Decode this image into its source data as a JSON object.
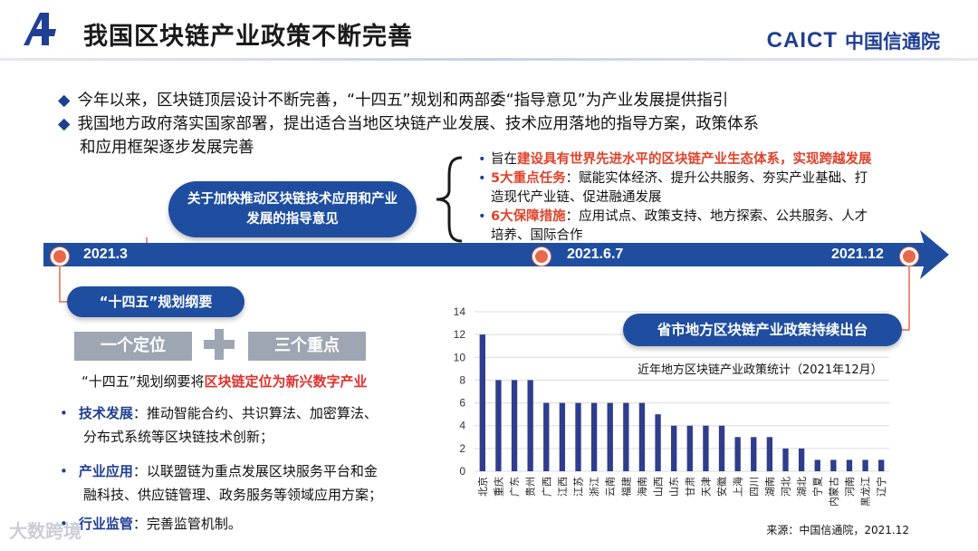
{
  "header": {
    "title": "我国区块链产业政策不断完善",
    "brand_en": "CAICT",
    "brand_cn": "中国信通院"
  },
  "bullets": [
    "今年以来，区块链顶层设计不断完善，“十四五”规划和两部委“指导意见”为产业发展提供指引",
    "我国地方政府落实国家部署，提出适合当地区块链产业发展、技术应用落地的指导方案，政策体系",
    "和应用框架逐步发展完善"
  ],
  "guideline": {
    "title_line1": "关于加快推动区块链技术应用和产业",
    "title_line2": "发展的指导意见",
    "goal1_prefix": "旨在",
    "goal1_red": "建设具有世界先进水平的区块链产业生态体系，实现跨越发展",
    "goal2_red": "5大重点任务",
    "goal2_text": "：赋能实体经济、提升公共服务、夯实产业基础、打",
    "goal2_cont": "造现代产业链、促进融通发展",
    "goal3_red": "6大保障措施",
    "goal3_text": "：应用试点、政策支持、地方探索、公共服务、人才",
    "goal3_cont": "培养、国际合作"
  },
  "timeline": {
    "date1": "2021.3",
    "date2": "2021.6.7",
    "date3": "2021.12"
  },
  "plan": {
    "pill": "“十四五”规划纲要",
    "position_box": "一个定位",
    "plus": "+",
    "points_box": "三个重点",
    "desc_prefix": "“十四五”规划纲要将",
    "desc_red": "区块链定位为新兴数字产业",
    "items": [
      {
        "head": "技术发展",
        "text": "：推动智能合约、共识算法、加密算法、",
        "cont": "分布式系统等区块链技术创新；"
      },
      {
        "head": "产业应用",
        "text": "：以联盟链为重点发展区块服务平台和金",
        "cont": "融科技、供应链管理、政务服务等领域应用方案；"
      },
      {
        "head": "行业监管",
        "text": "：完善监管机制。",
        "cont": ""
      }
    ]
  },
  "province_pill": "省市地方区块链产业政策持续出台",
  "chart_data": {
    "type": "bar",
    "title": "近年地方区块链产业政策统计（2021年12月）",
    "categories": [
      "北京",
      "重庆",
      "广东",
      "贵州",
      "广西",
      "江西",
      "江苏",
      "浙江",
      "云南",
      "福建",
      "海南",
      "山西",
      "山东",
      "甘肃",
      "天津",
      "安徽",
      "上海",
      "四川",
      "湖南",
      "河北",
      "湖北",
      "宁夏",
      "内蒙古",
      "河南",
      "黑龙江",
      "辽宁"
    ],
    "values": [
      12,
      8,
      8,
      8,
      6,
      6,
      6,
      6,
      6,
      6,
      6,
      5,
      4,
      4,
      4,
      4,
      3,
      3,
      3,
      2,
      2,
      1,
      1,
      1,
      1,
      1
    ],
    "ylim": [
      0,
      14
    ],
    "yticks": [
      0,
      2,
      4,
      6,
      8,
      10,
      12,
      14
    ],
    "bar_color": "#2f3d8c",
    "grid": true,
    "source": "来源：中国信通院，2021.12"
  },
  "watermark": "大数跨境",
  "colors": {
    "primary": "#1f4ea1",
    "accent": "#e0432b",
    "node": "#e9684b"
  }
}
